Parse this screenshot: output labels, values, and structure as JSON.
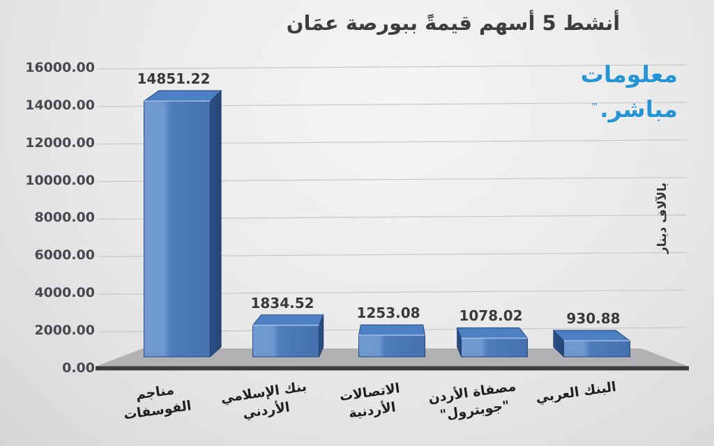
{
  "chart": {
    "title": "أنشط 5 أسهم قيمةً ببورصة عمَان",
    "value_axis_title": "بالآلاف دينار"
  },
  "logo": {
    "line1": "معلومات",
    "line2": "مباشر.",
    "tm": "™"
  },
  "chart_data": {
    "type": "bar",
    "effect": "3d",
    "title": "أنشط 5 أسهم قيمةً ببورصة عمَان",
    "xlabel": "",
    "ylabel": "بالآلاف دينار",
    "categories": [
      "مناجم الفوسفات",
      "بنك الإسلامي الأردني",
      "الاتصالات الأردنية",
      "مصفاة الأردن \"جوبترول\"",
      "البنك العربي"
    ],
    "category_lines": [
      [
        "مناجم",
        "الفوسفات"
      ],
      [
        "بنك الإسلامي",
        "الأردني"
      ],
      [
        "الاتصالات",
        "الأردنية"
      ],
      [
        "مصفاة الأردن",
        "\"جوبترول\""
      ],
      [
        "البنك العربي"
      ]
    ],
    "values": [
      14851.22,
      1834.52,
      1253.08,
      1078.02,
      930.88
    ],
    "data_labels": [
      "14851.22",
      "1834.52",
      "1253.08",
      "1078.02",
      "930.88"
    ],
    "ytick_values": [
      0,
      2000,
      4000,
      6000,
      8000,
      10000,
      12000,
      14000,
      16000
    ],
    "ytick_labels": [
      "0.00",
      "2000.00",
      "4000.00",
      "6000.00",
      "8000.00",
      "10000.00",
      "12000.00",
      "14000.00",
      "16000.00"
    ],
    "ylim": [
      0,
      16000
    ],
    "grid": true,
    "legend": false,
    "colors": {
      "bar_front_light": "#7098d1",
      "bar_front": "#4e7cbd",
      "bar_front_dark": "#4470ae",
      "bar_side": "#2d4f83",
      "bar_side_dark": "#264572",
      "bar_top": "#4d80c3",
      "bar_top_edge": "#9dbde7",
      "bar_outline": "#1d4176",
      "grid": "#c7c7ca",
      "floor": "#b1b1b3",
      "floor_edge": "#3b3b3b",
      "logo_blue": "#2794d6"
    }
  }
}
